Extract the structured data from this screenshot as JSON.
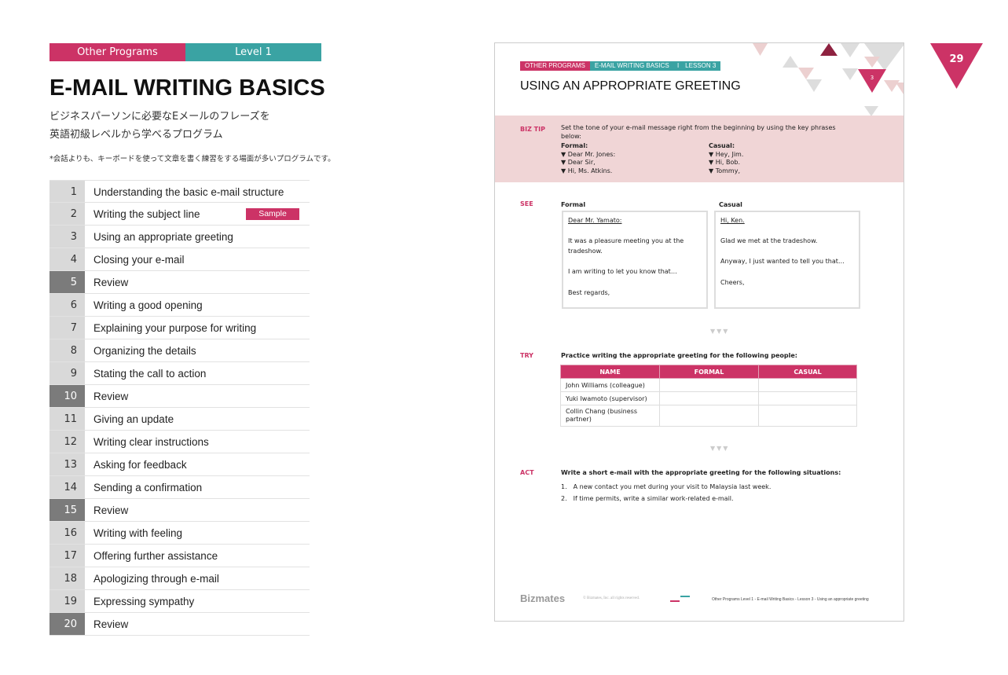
{
  "header": {
    "program": "Other Programs",
    "level": "Level 1",
    "title": "E-MAIL WRITING BASICS",
    "subtitle_line1": "ビジネスパーソンに必要なEメールのフレーズを",
    "subtitle_line2": "英語初級レベルから学べるプログラム",
    "note": "*会話よりも、キーボードを使って文章を書く練習をする場面が多いプログラムです。"
  },
  "colors": {
    "pink": "#cc3366",
    "teal": "#3aa3a3",
    "review_gray": "#7b7b7b"
  },
  "sample_label": "Sample",
  "lessons": [
    {
      "n": "1",
      "t": "Understanding the basic e-mail structure"
    },
    {
      "n": "2",
      "t": "Writing the subject line",
      "sample": true
    },
    {
      "n": "3",
      "t": "Using an appropriate greeting"
    },
    {
      "n": "4",
      "t": "Closing your e-mail"
    },
    {
      "n": "5",
      "t": "Review",
      "review": true
    },
    {
      "n": "6",
      "t": "Writing a good opening"
    },
    {
      "n": "7",
      "t": "Explaining your purpose for writing"
    },
    {
      "n": "8",
      "t": "Organizing the details"
    },
    {
      "n": "9",
      "t": "Stating the call to action"
    },
    {
      "n": "10",
      "t": "Review",
      "review": true
    },
    {
      "n": "11",
      "t": "Giving an update"
    },
    {
      "n": "12",
      "t": "Writing clear instructions"
    },
    {
      "n": "13",
      "t": "Asking for feedback"
    },
    {
      "n": "14",
      "t": "Sending a confirmation"
    },
    {
      "n": "15",
      "t": "Review",
      "review": true
    },
    {
      "n": "16",
      "t": "Writing with feeling"
    },
    {
      "n": "17",
      "t": "Offering further assistance"
    },
    {
      "n": "18",
      "t": "Apologizing through e-mail"
    },
    {
      "n": "19",
      "t": "Expressing sympathy"
    },
    {
      "n": "20",
      "t": "Review",
      "review": true
    }
  ],
  "page_number": "29",
  "doc": {
    "tag1": "OTHER PROGRAMS",
    "tag2": "E-MAIL WRITING BASICS　 I　LESSON 3",
    "title": "USING AN APPROPRIATE GREETING",
    "lesson_no": "3",
    "biztip": {
      "label": "BIZ TIP",
      "text": "Set the tone of your e-mail message right from the beginning by using the key phrases below:",
      "formal_label": "Formal:",
      "formal": [
        "▼ Dear Mr. Jones:",
        "▼ Dear Sir,",
        "▼ Hi, Ms. Atkins."
      ],
      "casual_label": "Casual:",
      "casual": [
        "▼ Hey, Jim.",
        "▼ Hi, Bob.",
        "▼ Tommy,"
      ]
    },
    "see": {
      "label": "SEE",
      "formal_label": "Formal",
      "casual_label": "Casual",
      "formal_lines": [
        "Dear Mr. Yamato:",
        "It was a pleasure meeting you at the tradeshow.",
        "I am writing to let you know that…",
        "Best regards,"
      ],
      "casual_lines": [
        "Hi, Ken.",
        "Glad we met at the tradeshow.",
        "Anyway, I just wanted to tell you that…",
        "Cheers,"
      ]
    },
    "arrows": "▼▼▼",
    "try": {
      "label": "TRY",
      "instruction": "Practice writing the appropriate greeting for the following people:",
      "headers": [
        "NAME",
        "FORMAL",
        "CASUAL"
      ],
      "rows": [
        "John Williams (colleague)",
        "Yuki Iwamoto (supervisor)",
        "Collin Chang (business partner)"
      ]
    },
    "act": {
      "label": "ACT",
      "instruction": "Write a short e-mail with the appropriate greeting for the following situations:",
      "items": [
        "1.　A new contact you met during your visit to Malaysia last week.",
        "2.　If time permits, write a similar work-related e-mail."
      ]
    },
    "footer": {
      "brand": "Bizmates",
      "copyright": "© Bizmates, Inc. all rights reserved.",
      "breadcrumb": "Other Programs Level 1  - E-mail Writing Basics - Lesson 3 - Using an appropriate greeting"
    }
  }
}
